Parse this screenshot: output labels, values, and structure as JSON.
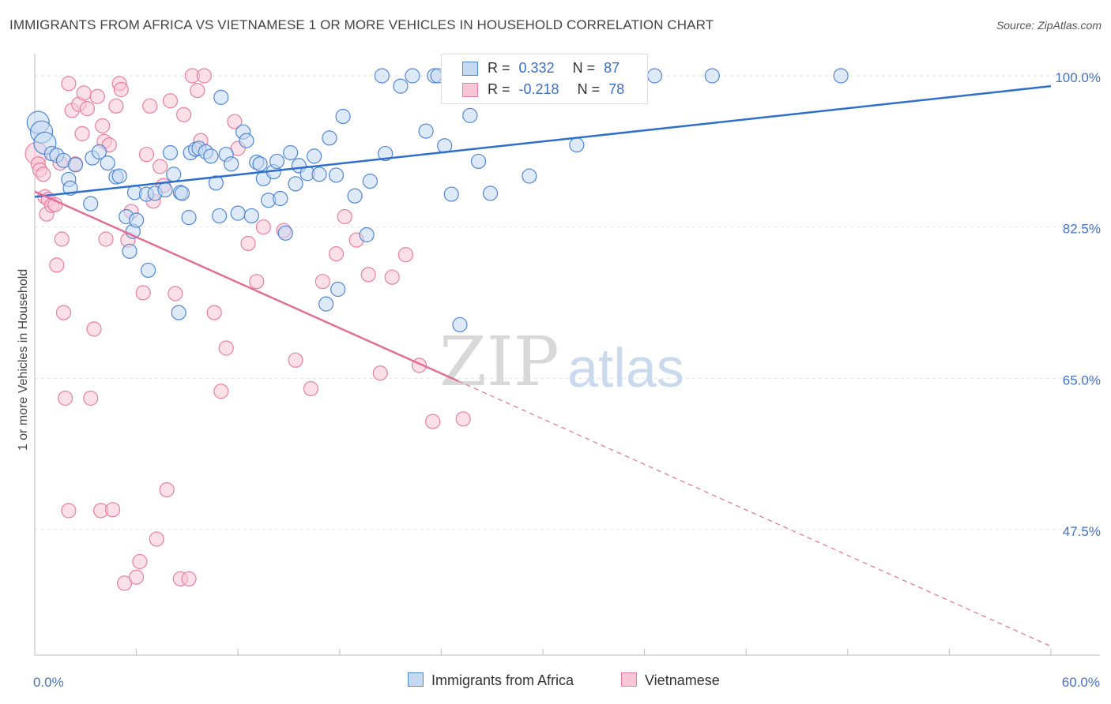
{
  "title": "IMMIGRANTS FROM AFRICA VS VIETNAMESE 1 OR MORE VEHICLES IN HOUSEHOLD CORRELATION CHART",
  "source": "Source: ZipAtlas.com",
  "watermark": {
    "zip": "ZIP",
    "atlas": "atlas"
  },
  "legend": {
    "rows": [
      {
        "r_label": "R =",
        "r_value": "0.332",
        "n_label": "N =",
        "n_value": "87"
      },
      {
        "r_label": "R =",
        "r_value": "-0.218",
        "n_label": "N =",
        "n_value": "78"
      }
    ]
  },
  "bottom_legend": [
    "Immigrants from Africa",
    "Vietnamese"
  ],
  "colors": {
    "blue": "#4f86d4",
    "blue_fill": "#c5d9f3",
    "blue_line": "#2e6fcc",
    "pink": "#e77fa2",
    "pink_fill": "#f8c6d6",
    "pink_line": "#e07099",
    "tick": "#4472c4",
    "grid": "#e3e3e3"
  },
  "chart_data": {
    "type": "scatter",
    "title": "IMMIGRANTS FROM AFRICA VS VIETNAMESE 1 OR MORE VEHICLES IN HOUSEHOLD CORRELATION CHART",
    "xlabel": "",
    "ylabel": "1 or more Vehicles in Household",
    "xlim": [
      0,
      60
    ],
    "ylim": [
      33,
      101.5
    ],
    "x_tick_labels": [
      "0.0%",
      "60.0%"
    ],
    "y_ticks": [
      100,
      82.5,
      65,
      47.5
    ],
    "y_tick_labels": [
      "100.0%",
      "82.5%",
      "65.0%",
      "47.5%"
    ],
    "grid": true,
    "series": [
      {
        "name": "Immigrants from Africa",
        "trend": {
          "x": [
            0,
            60
          ],
          "y": [
            86.0,
            98.8
          ],
          "dashed_from_x": null
        },
        "points": [
          [
            0.2,
            94.6,
            2
          ],
          [
            0.4,
            93.5,
            2
          ],
          [
            0.6,
            92.2,
            2
          ],
          [
            1.0,
            91.0,
            1
          ],
          [
            1.3,
            90.8,
            1
          ],
          [
            2.0,
            88.0,
            1
          ],
          [
            2.1,
            87.0,
            1
          ],
          [
            1.7,
            90.2,
            1
          ],
          [
            2.4,
            89.7,
            1
          ],
          [
            3.3,
            85.2,
            1
          ],
          [
            3.4,
            90.5,
            1
          ],
          [
            3.8,
            91.2,
            1
          ],
          [
            4.3,
            89.9,
            1
          ],
          [
            4.8,
            88.3,
            1
          ],
          [
            5.0,
            88.4,
            1
          ],
          [
            5.4,
            83.7,
            1
          ],
          [
            5.6,
            79.7,
            1
          ],
          [
            5.8,
            82.0,
            1
          ],
          [
            5.9,
            86.5,
            1
          ],
          [
            6.0,
            83.3,
            1
          ],
          [
            6.6,
            86.3,
            1
          ],
          [
            6.7,
            77.5,
            1
          ],
          [
            7.1,
            86.4,
            1
          ],
          [
            7.7,
            86.8,
            1
          ],
          [
            8.0,
            91.1,
            1
          ],
          [
            8.2,
            88.6,
            1
          ],
          [
            8.5,
            72.6,
            1
          ],
          [
            8.6,
            86.5,
            1
          ],
          [
            8.7,
            86.4,
            1
          ],
          [
            9.1,
            83.6,
            1
          ],
          [
            9.2,
            91.1,
            1
          ],
          [
            9.5,
            91.5,
            1
          ],
          [
            9.7,
            91.6,
            1
          ],
          [
            10.1,
            91.2,
            1
          ],
          [
            10.4,
            90.7,
            1
          ],
          [
            10.7,
            87.6,
            1
          ],
          [
            10.9,
            83.8,
            1
          ],
          [
            11.0,
            97.5,
            1
          ],
          [
            11.3,
            90.9,
            1
          ],
          [
            11.6,
            89.8,
            1
          ],
          [
            12.0,
            84.1,
            1
          ],
          [
            12.3,
            93.5,
            1
          ],
          [
            12.5,
            92.5,
            1
          ],
          [
            12.8,
            83.8,
            1
          ],
          [
            13.1,
            90.0,
            1
          ],
          [
            13.3,
            89.8,
            1
          ],
          [
            13.5,
            88.1,
            1
          ],
          [
            13.8,
            85.6,
            1
          ],
          [
            14.1,
            88.9,
            1
          ],
          [
            14.3,
            90.1,
            1
          ],
          [
            14.5,
            85.8,
            1
          ],
          [
            14.8,
            81.8,
            1
          ],
          [
            15.1,
            91.1,
            1
          ],
          [
            15.4,
            87.5,
            1
          ],
          [
            15.6,
            89.6,
            1
          ],
          [
            16.1,
            88.7,
            1
          ],
          [
            16.5,
            90.7,
            1
          ],
          [
            16.8,
            88.6,
            1
          ],
          [
            17.2,
            73.6,
            1
          ],
          [
            17.4,
            92.8,
            1
          ],
          [
            17.8,
            88.5,
            1
          ],
          [
            17.9,
            75.3,
            1
          ],
          [
            18.2,
            95.3,
            1
          ],
          [
            18.9,
            86.1,
            1
          ],
          [
            19.6,
            81.6,
            1
          ],
          [
            19.8,
            87.8,
            1
          ],
          [
            20.5,
            100.0,
            1
          ],
          [
            20.7,
            91.0,
            1
          ],
          [
            21.6,
            98.8,
            1
          ],
          [
            22.3,
            100.0,
            1
          ],
          [
            23.1,
            93.6,
            1
          ],
          [
            23.6,
            100.0,
            1
          ],
          [
            23.8,
            100.0,
            1
          ],
          [
            24.2,
            91.9,
            1
          ],
          [
            24.6,
            86.3,
            1
          ],
          [
            25.1,
            71.2,
            1
          ],
          [
            25.7,
            95.4,
            1
          ],
          [
            26.2,
            90.1,
            1
          ],
          [
            26.9,
            86.4,
            1
          ],
          [
            28.2,
            100.0,
            1
          ],
          [
            29.2,
            88.4,
            1
          ],
          [
            32.0,
            92.0,
            1
          ],
          [
            36.6,
            100.0,
            1
          ],
          [
            40.0,
            100.0,
            1
          ],
          [
            47.6,
            100.0,
            1
          ]
        ]
      },
      {
        "name": "Vietnamese",
        "trend": {
          "x": [
            0,
            60
          ],
          "y": [
            86.6,
            34.0
          ],
          "dashed_from_x": 25.0
        },
        "points": [
          [
            0.1,
            91.0,
            2
          ],
          [
            0.2,
            89.8,
            1
          ],
          [
            0.3,
            89.1,
            1
          ],
          [
            0.5,
            88.6,
            1
          ],
          [
            0.6,
            86.0,
            1
          ],
          [
            0.7,
            84.0,
            1
          ],
          [
            0.8,
            85.7,
            1
          ],
          [
            1.0,
            85.0,
            1
          ],
          [
            1.2,
            85.1,
            1
          ],
          [
            1.3,
            78.1,
            1
          ],
          [
            1.5,
            89.9,
            1
          ],
          [
            1.6,
            81.1,
            1
          ],
          [
            1.7,
            72.6,
            1
          ],
          [
            1.8,
            62.7,
            1
          ],
          [
            2.0,
            99.1,
            1
          ],
          [
            2.0,
            49.7,
            1
          ],
          [
            2.2,
            96.0,
            1
          ],
          [
            2.4,
            89.8,
            1
          ],
          [
            2.6,
            96.7,
            1
          ],
          [
            2.8,
            93.3,
            1
          ],
          [
            2.9,
            98.0,
            1
          ],
          [
            3.1,
            96.2,
            1
          ],
          [
            3.3,
            62.7,
            1
          ],
          [
            3.5,
            70.7,
            1
          ],
          [
            3.7,
            97.6,
            1
          ],
          [
            3.9,
            49.7,
            1
          ],
          [
            4.0,
            94.2,
            1
          ],
          [
            4.1,
            92.4,
            1
          ],
          [
            4.2,
            81.1,
            1
          ],
          [
            4.4,
            92.0,
            1
          ],
          [
            4.6,
            49.8,
            1
          ],
          [
            4.8,
            96.5,
            1
          ],
          [
            5.0,
            99.1,
            1
          ],
          [
            5.1,
            98.4,
            1
          ],
          [
            5.3,
            41.3,
            1
          ],
          [
            5.5,
            81.0,
            1
          ],
          [
            5.7,
            84.3,
            1
          ],
          [
            6.0,
            42.0,
            1
          ],
          [
            6.2,
            43.8,
            1
          ],
          [
            6.4,
            74.9,
            1
          ],
          [
            6.6,
            90.9,
            1
          ],
          [
            6.8,
            96.5,
            1
          ],
          [
            7.0,
            85.5,
            1
          ],
          [
            7.2,
            46.4,
            1
          ],
          [
            7.4,
            89.5,
            1
          ],
          [
            7.6,
            87.3,
            1
          ],
          [
            7.8,
            52.1,
            1
          ],
          [
            8.0,
            97.1,
            1
          ],
          [
            8.3,
            74.8,
            1
          ],
          [
            8.6,
            41.8,
            1
          ],
          [
            8.8,
            95.5,
            1
          ],
          [
            9.1,
            41.8,
            1
          ],
          [
            9.3,
            100.0,
            1
          ],
          [
            9.6,
            98.3,
            1
          ],
          [
            9.8,
            92.5,
            1
          ],
          [
            10.0,
            100.0,
            1
          ],
          [
            10.6,
            72.6,
            1
          ],
          [
            11.0,
            63.5,
            1
          ],
          [
            11.3,
            68.5,
            1
          ],
          [
            11.8,
            94.7,
            1
          ],
          [
            12.0,
            91.6,
            1
          ],
          [
            12.6,
            80.6,
            1
          ],
          [
            13.1,
            76.2,
            1
          ],
          [
            13.5,
            82.5,
            1
          ],
          [
            14.7,
            82.1,
            1
          ],
          [
            15.4,
            67.1,
            1
          ],
          [
            16.3,
            63.8,
            1
          ],
          [
            17.0,
            76.2,
            1
          ],
          [
            17.8,
            79.4,
            1
          ],
          [
            18.3,
            83.7,
            1
          ],
          [
            19.0,
            81.0,
            1
          ],
          [
            19.7,
            77.0,
            1
          ],
          [
            20.4,
            65.6,
            1
          ],
          [
            21.1,
            76.7,
            1
          ],
          [
            21.9,
            79.3,
            1
          ],
          [
            22.7,
            66.5,
            1
          ],
          [
            23.5,
            60.0,
            1
          ],
          [
            25.3,
            60.3,
            1
          ]
        ]
      }
    ]
  }
}
